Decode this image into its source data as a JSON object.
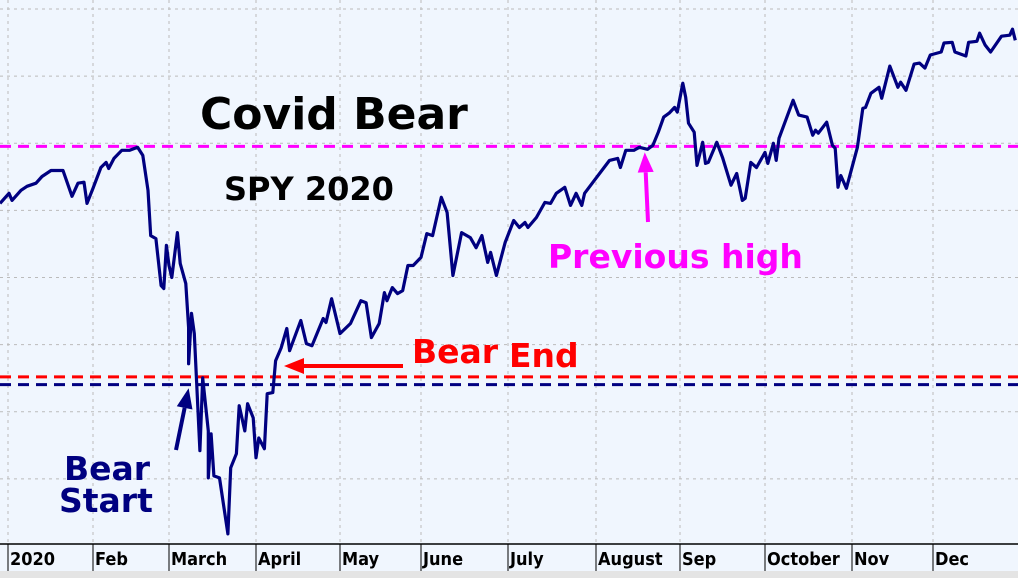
{
  "chart_data": {
    "type": "line",
    "title": "Covid Bear",
    "subtitle": "SPY 2020",
    "xlabel": "",
    "ylabel": "",
    "ylim": [
      220.6,
      382.7
    ],
    "xlim": [
      "2020-01-02",
      "2020-12-31"
    ],
    "grid": true,
    "y_tick_labels_shown": false,
    "x_tick_labels": [
      "2020",
      "Feb",
      "March",
      "April",
      "May",
      "June",
      "July",
      "August",
      "Sep",
      "October",
      "Nov",
      "Dec"
    ],
    "y_grid_values": [
      240,
      260,
      280,
      300,
      320,
      340,
      360,
      380
    ],
    "colors": {
      "series": "#000080",
      "previous_high": "#ff00ff",
      "bear_end": "#ff0000",
      "bear_start": "#000080",
      "background": "#f0f6fe",
      "grid": "#bbbbbb"
    },
    "reference_lines": [
      {
        "id": "previous_high",
        "value": 339.1,
        "color": "#ff00ff",
        "style": "dashed"
      },
      {
        "id": "bear_end",
        "value": 270.4,
        "color": "#ff0000",
        "style": "dashed"
      },
      {
        "id": "bear_start",
        "value": 268.1,
        "color": "#000080",
        "style": "dashed"
      }
    ],
    "annotations": {
      "previous_high": {
        "text": "Previous high",
        "color": "#ff00ff",
        "arrow_date": "2020-08-19",
        "arrow_value": 339.1
      },
      "bear_end": {
        "text1": "Bear",
        "text2": "End",
        "color": "#ff0000",
        "arrow_date": "2020-04-11",
        "arrow_value": 275.5
      },
      "bear_start": {
        "text1": "Bear",
        "text2": "Start",
        "color": "#000080",
        "arrow_date": "2020-03-08",
        "arrow_value": 268.5
      }
    },
    "series": [
      {
        "x": [
          "2020-01-02",
          "2020-01-05",
          "2020-01-06",
          "2020-01-09",
          "2020-01-11",
          "2020-01-14",
          "2020-01-16",
          "2020-01-19",
          "2020-01-23",
          "2020-01-26",
          "2020-01-28",
          "2020-01-30",
          "2020-01-31",
          "2020-02-01",
          "2020-02-04",
          "2020-02-06",
          "2020-02-07",
          "2020-02-09",
          "2020-02-12",
          "2020-02-15",
          "2020-02-18",
          "2020-02-20",
          "2020-02-22",
          "2020-02-23",
          "2020-02-25",
          "2020-02-27",
          "2020-02-28",
          "2020-02-29",
          "2020-03-01",
          "2020-03-02",
          "2020-03-04",
          "2020-03-05",
          "2020-03-07",
          "2020-03-08",
          "2020-03-08",
          "2020-03-09",
          "2020-03-10",
          "2020-03-12",
          "2020-03-13",
          "2020-03-15",
          "2020-03-15",
          "2020-03-16",
          "2020-03-17",
          "2020-03-19",
          "2020-03-22",
          "2020-03-23",
          "2020-03-25",
          "2020-03-26",
          "2020-03-28",
          "2020-03-29",
          "2020-03-31",
          "2020-04-01",
          "2020-04-02",
          "2020-04-04",
          "2020-04-05",
          "2020-04-07",
          "2020-04-08",
          "2020-04-10",
          "2020-04-12",
          "2020-04-13",
          "2020-04-17",
          "2020-04-19",
          "2020-04-21",
          "2020-04-25",
          "2020-04-26",
          "2020-04-28",
          "2020-05-01",
          "2020-05-05",
          "2020-05-09",
          "2020-05-11",
          "2020-05-13",
          "2020-05-16",
          "2020-05-18",
          "2020-05-19",
          "2020-05-21",
          "2020-05-23",
          "2020-05-25",
          "2020-05-27",
          "2020-05-29",
          "2020-06-01",
          "2020-06-03",
          "2020-06-05",
          "2020-06-08",
          "2020-06-10",
          "2020-06-12",
          "2020-06-15",
          "2020-06-18",
          "2020-06-20",
          "2020-06-22",
          "2020-06-24",
          "2020-06-25",
          "2020-06-27",
          "2020-06-30",
          "2020-07-03",
          "2020-07-05",
          "2020-07-07",
          "2020-07-08",
          "2020-07-11",
          "2020-07-14",
          "2020-07-16",
          "2020-07-18",
          "2020-07-21",
          "2020-07-23",
          "2020-07-25",
          "2020-07-27",
          "2020-07-28",
          "2020-08-01",
          "2020-08-04",
          "2020-08-06",
          "2020-08-09",
          "2020-08-10",
          "2020-08-12",
          "2020-08-15",
          "2020-08-17",
          "2020-08-20",
          "2020-08-22",
          "2020-08-24",
          "2020-08-26",
          "2020-08-28",
          "2020-08-30",
          "2020-08-31",
          "2020-09-02",
          "2020-09-03",
          "2020-09-04",
          "2020-09-06",
          "2020-09-07",
          "2020-09-09",
          "2020-09-10",
          "2020-09-11",
          "2020-09-14",
          "2020-09-16",
          "2020-09-19",
          "2020-09-21",
          "2020-09-23",
          "2020-09-24",
          "2020-09-26",
          "2020-09-28",
          "2020-10-01",
          "2020-10-02",
          "2020-10-04",
          "2020-10-05",
          "2020-10-06",
          "2020-10-11",
          "2020-10-13",
          "2020-10-16",
          "2020-10-18",
          "2020-10-19",
          "2020-10-20",
          "2020-10-23",
          "2020-10-25",
          "2020-10-26",
          "2020-10-27",
          "2020-10-28",
          "2020-10-30",
          "2020-11-03",
          "2020-11-05",
          "2020-11-06",
          "2020-11-08",
          "2020-11-11",
          "2020-11-12",
          "2020-11-15",
          "2020-11-18",
          "2020-11-19",
          "2020-11-21",
          "2020-11-24",
          "2020-11-26",
          "2020-11-28",
          "2020-11-30",
          "2020-12-04",
          "2020-12-05",
          "2020-12-08",
          "2020-12-09",
          "2020-12-13",
          "2020-12-14",
          "2020-12-17",
          "2020-12-18",
          "2020-12-20",
          "2020-12-22",
          "2020-12-26",
          "2020-12-29",
          "2020-12-30",
          "2020-12-31"
        ],
        "y": [
          322.1,
          325.1,
          323.0,
          326.0,
          327.2,
          328.1,
          330.1,
          331.9,
          331.9,
          324.2,
          328.1,
          328.4,
          322.1,
          326.6,
          332.8,
          334.3,
          332.5,
          335.5,
          337.9,
          337.9,
          338.8,
          336.4,
          326.0,
          312.5,
          311.6,
          297.6,
          296.7,
          309.6,
          303.6,
          300.0,
          313.4,
          304.2,
          298.2,
          285.1,
          274.3,
          289.3,
          283.3,
          248.4,
          270.1,
          254.3,
          240.3,
          253.4,
          240.9,
          240.3,
          223.6,
          243.3,
          247.5,
          261.8,
          254.3,
          262.4,
          258.2,
          246.3,
          252.2,
          249.0,
          265.4,
          265.7,
          275.2,
          279.1,
          284.8,
          278.2,
          287.2,
          280.3,
          279.7,
          287.8,
          286.6,
          293.7,
          283.3,
          286.3,
          293.1,
          292.5,
          282.1,
          286.3,
          295.5,
          293.1,
          297.0,
          295.2,
          296.1,
          303.6,
          303.6,
          306.0,
          313.1,
          312.5,
          323.9,
          319.4,
          300.6,
          313.4,
          311.9,
          308.9,
          312.5,
          304.5,
          307.5,
          300.6,
          310.4,
          317.0,
          314.9,
          316.4,
          314.9,
          317.9,
          322.4,
          322.1,
          325.1,
          326.9,
          321.5,
          325.1,
          321.5,
          325.1,
          329.6,
          332.8,
          334.9,
          335.5,
          332.8,
          337.9,
          337.9,
          338.8,
          338.2,
          339.4,
          343.3,
          347.8,
          349.0,
          350.7,
          349.3,
          357.9,
          353.7,
          346.0,
          343.3,
          333.4,
          340.3,
          334.0,
          334.3,
          340.3,
          335.8,
          327.5,
          331.0,
          323.0,
          323.6,
          334.3,
          332.8,
          337.3,
          334.0,
          340.0,
          334.9,
          341.5,
          352.8,
          348.4,
          347.8,
          342.4,
          343.9,
          343.0,
          346.3,
          339.4,
          338.5,
          326.9,
          330.4,
          326.6,
          338.8,
          350.4,
          350.7,
          354.9,
          356.7,
          353.4,
          363.0,
          356.7,
          358.2,
          355.8,
          363.6,
          363.9,
          362.4,
          366.3,
          367.2,
          369.9,
          370.1,
          367.2,
          366.0,
          370.1,
          370.4,
          372.8,
          369.3,
          367.2,
          371.9,
          372.2,
          374.0,
          370.7
        ]
      }
    ]
  }
}
